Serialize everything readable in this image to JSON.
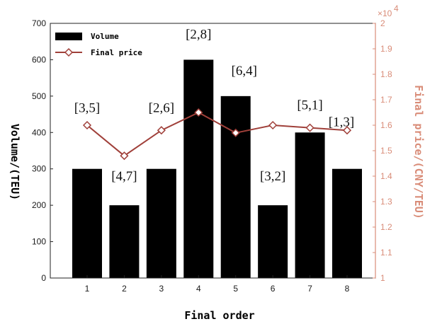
{
  "chart_data": {
    "type": "bar",
    "categories": [
      "1",
      "2",
      "3",
      "4",
      "5",
      "6",
      "7",
      "8"
    ],
    "series": [
      {
        "name": "Volume",
        "type": "bar",
        "axis": "left",
        "values": [
          300,
          200,
          300,
          600,
          500,
          200,
          400,
          300
        ]
      },
      {
        "name": "Final price",
        "type": "line",
        "axis": "right",
        "values": [
          1.6,
          1.48,
          1.58,
          1.65,
          1.57,
          1.6,
          1.59,
          1.58
        ]
      }
    ],
    "bar_labels": [
      "[3,5]",
      "[4,7]",
      "[2,6]",
      "[2,8]",
      "[6,4]",
      "[3,2]",
      "[5,1]",
      "[1,3]"
    ],
    "xlabel": "Final order",
    "ylabel": "Volume/(TEU)",
    "ylabel_right": "Final  price/(CNY/TEU)",
    "ylim": [
      0,
      700
    ],
    "ylim_right": [
      1,
      2
    ],
    "yticks": [
      "0",
      "100",
      "200",
      "300",
      "400",
      "500",
      "600",
      "700"
    ],
    "yticks_right": [
      "1",
      "1.1",
      "1.2",
      "1.3",
      "1.4",
      "1.5",
      "1.6",
      "1.7",
      "1.8",
      "1.9",
      "2"
    ],
    "right_axis_multiplier": "×10",
    "right_axis_exponent": "4",
    "legend_position": "top-left",
    "colors": {
      "bar": "#000000",
      "line": "#a0403a",
      "right_axis": "#d98c78"
    }
  }
}
